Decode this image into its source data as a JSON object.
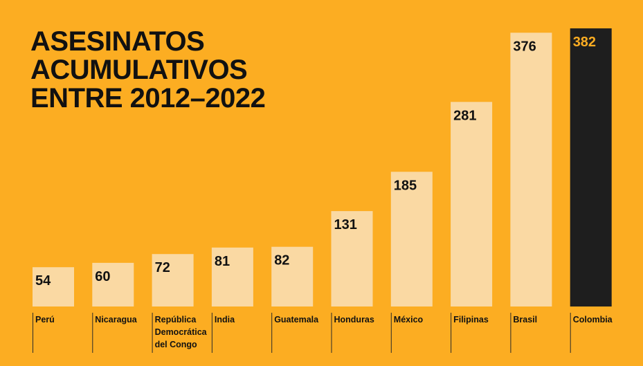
{
  "title_lines": [
    "ASESINATOS",
    "ACUMULATIVOS",
    "ENTRE 2012–2022"
  ],
  "colors": {
    "background": "#FCAD22",
    "bar": "#FAD9A3",
    "highlight_bar": "#1E1E1E",
    "highlight_label": "#FCAD22",
    "text": "#111111"
  },
  "chart_data": {
    "type": "bar",
    "title": "ASESINATOS ACUMULATIVOS ENTRE 2012–2022",
    "categories": [
      "Perú",
      "Nicaragua",
      "República Democrática del Congo",
      "India",
      "Guatemala",
      "Honduras",
      "México",
      "Filipinas",
      "Brasil",
      "Colombia"
    ],
    "category_lines": [
      [
        "Perú"
      ],
      [
        "Nicaragua"
      ],
      [
        "República",
        "Democrática",
        "del Congo"
      ],
      [
        "India"
      ],
      [
        "Guatemala"
      ],
      [
        "Honduras"
      ],
      [
        "México"
      ],
      [
        "Filipinas"
      ],
      [
        "Brasil"
      ],
      [
        "Colombia"
      ]
    ],
    "values": [
      54,
      60,
      72,
      81,
      82,
      131,
      185,
      281,
      376,
      382
    ],
    "highlight": "Colombia",
    "xlabel": "",
    "ylabel": "",
    "ylim": [
      0,
      382
    ],
    "grid": false,
    "legend": "none"
  }
}
